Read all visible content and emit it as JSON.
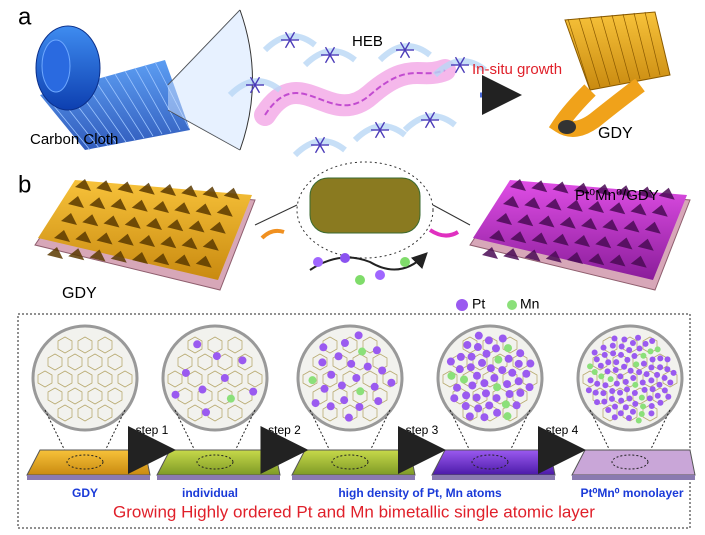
{
  "panel_a": {
    "label": "a",
    "heb": "HEB",
    "growth": "In-situ growth",
    "carbon_cloth": "Carbon Cloth",
    "gdy": "GDY"
  },
  "panel_b": {
    "label": "b",
    "left_label": "GDY",
    "right_label": "Pt⁰Mn⁰/GDY",
    "legend": [
      "Pt",
      "Mn"
    ],
    "steps": [
      "step 1",
      "step 2",
      "step 3",
      "step 4"
    ],
    "stages": [
      "GDY",
      "individual",
      "high density of Pt, Mn atoms",
      "Pt⁰Mn⁰ monolayer"
    ],
    "caption": "Growing Highly ordered Pt and Mn bimetallic single atomic layer"
  }
}
